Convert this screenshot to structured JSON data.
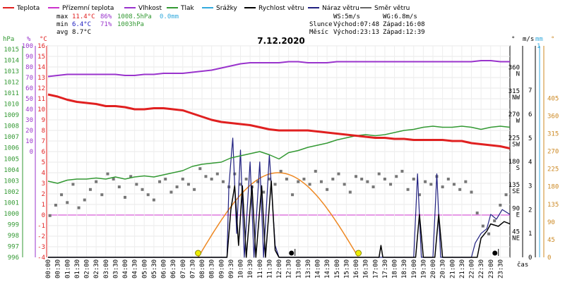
{
  "chart_data": {
    "type": "line",
    "title": "7.12.2020",
    "legend": [
      {
        "label": "Teplota",
        "color": "#e02020"
      },
      {
        "label": "Přízemní teplota",
        "color": "#cc33cc"
      },
      {
        "label": "Vlhkost",
        "color": "#9933cc"
      },
      {
        "label": "Tlak",
        "color": "#339933"
      },
      {
        "label": "Srážky",
        "color": "#33aadd"
      },
      {
        "label": "Rychlost větru",
        "color": "#000000"
      },
      {
        "label": "Náraz větru",
        "color": "#202080"
      },
      {
        "label": "Směr větru",
        "color": "#666666"
      }
    ],
    "stats": {
      "max_label": "max",
      "min_label": "min",
      "avg_label": "avg",
      "max_temp": "11.4°C",
      "max_hum": "86%",
      "max_press": "1008.5hPa",
      "max_rain": "0.0mm",
      "min_temp": "6.4°C",
      "min_hum": "71%",
      "min_press": "1003hPa",
      "avg_temp": "8.7°C",
      "ws": "WS:5m/s",
      "wg": "WG:6.8m/s",
      "slunce": "Slunce",
      "mesic": "Měsíc",
      "sun_rise": "Východ:07:48",
      "sun_set": "Západ:16:08",
      "moon_rise": "Východ:23:13",
      "moon_set": "Západ:12:39"
    },
    "axes": {
      "hpa_label": "hPa",
      "pct_label": "%",
      "degc_label": "°C",
      "deg_label": "°",
      "ms_label": "m/s",
      "mm_label": "mm",
      "deg2_label": "°",
      "time_label": "čas",
      "hpa_ticks": [
        "1015",
        "1014",
        "1013",
        "1012",
        "1011",
        "1010",
        "1009",
        "1008",
        "1007",
        "1006",
        "1005",
        "1004",
        "1003",
        "1002",
        "1001",
        "1000",
        "999",
        "998",
        "997",
        "996"
      ],
      "pct_ticks": [
        "100",
        "90",
        "80",
        "70",
        "60",
        "50",
        "40",
        "30",
        "20",
        "10",
        "0",
        "",
        "",
        "",
        "",
        "",
        "",
        "",
        "",
        ""
      ],
      "c_ticks": [
        "16",
        "15",
        "14",
        "13",
        "12",
        "11",
        "10",
        "9",
        "8",
        "7",
        "6",
        "5",
        "4",
        "3",
        "2",
        "1",
        "0",
        "-1",
        "-2",
        "-3",
        "-4"
      ],
      "dir_ticks": [
        {
          "v": 360,
          "t1": "360",
          "t2": "N"
        },
        {
          "v": 315,
          "t1": "315",
          "t2": "NW"
        },
        {
          "v": 270,
          "t1": "270",
          "t2": "W"
        },
        {
          "v": 225,
          "t1": "225",
          "t2": "SW"
        },
        {
          "v": 180,
          "t1": "180",
          "t2": "S"
        },
        {
          "v": 135,
          "t1": "135",
          "t2": "SE"
        },
        {
          "v": 90,
          "t1": "90",
          "t2": "E"
        },
        {
          "v": 45,
          "t1": "45",
          "t2": "NE"
        }
      ],
      "ms_ticks": [
        "7",
        "6",
        "5",
        "4",
        "3",
        "2",
        "1",
        "0"
      ],
      "mm_ticks": [
        "1"
      ],
      "deg2_ticks": [
        "405",
        "360",
        "315",
        "270",
        "225",
        "180",
        "135",
        "90",
        "45",
        "0"
      ],
      "time_ticks": [
        "00:00",
        "00:30",
        "01:00",
        "01:30",
        "02:00",
        "02:30",
        "03:00",
        "03:30",
        "04:00",
        "04:30",
        "05:00",
        "05:30",
        "06:00",
        "06:30",
        "07:00",
        "07:30",
        "08:00",
        "08:30",
        "09:00",
        "09:30",
        "10:00",
        "10:30",
        "11:00",
        "11:30",
        "12:00",
        "12:30",
        "13:00",
        "13:30",
        "14:00",
        "14:30",
        "15:00",
        "15:30",
        "16:00",
        "16:30",
        "17:00",
        "17:30",
        "18:00",
        "18:30",
        "19:00",
        "19:30",
        "20:00",
        "20:30",
        "21:00",
        "21:30",
        "22:00",
        "22:30",
        "23:00",
        "23:30"
      ]
    },
    "x_unit": "hours",
    "temperature": [
      [
        0,
        11.4
      ],
      [
        0.5,
        11.2
      ],
      [
        1,
        10.9
      ],
      [
        1.5,
        10.7
      ],
      [
        2,
        10.6
      ],
      [
        2.5,
        10.5
      ],
      [
        3,
        10.3
      ],
      [
        3.5,
        10.3
      ],
      [
        4,
        10.2
      ],
      [
        4.5,
        10.0
      ],
      [
        5,
        10.0
      ],
      [
        5.5,
        10.1
      ],
      [
        6,
        10.1
      ],
      [
        6.5,
        10.0
      ],
      [
        7,
        9.9
      ],
      [
        7.5,
        9.6
      ],
      [
        8,
        9.3
      ],
      [
        8.5,
        9.0
      ],
      [
        9,
        8.8
      ],
      [
        9.5,
        8.7
      ],
      [
        10,
        8.6
      ],
      [
        10.5,
        8.5
      ],
      [
        11,
        8.3
      ],
      [
        11.5,
        8.1
      ],
      [
        12,
        8.0
      ],
      [
        12.5,
        8.0
      ],
      [
        13,
        8.0
      ],
      [
        13.5,
        8.0
      ],
      [
        14,
        7.9
      ],
      [
        14.5,
        7.8
      ],
      [
        15,
        7.7
      ],
      [
        15.5,
        7.6
      ],
      [
        16,
        7.5
      ],
      [
        16.5,
        7.4
      ],
      [
        17,
        7.3
      ],
      [
        17.5,
        7.3
      ],
      [
        18,
        7.2
      ],
      [
        18.5,
        7.2
      ],
      [
        19,
        7.1
      ],
      [
        19.5,
        7.1
      ],
      [
        20,
        7.1
      ],
      [
        20.5,
        7.1
      ],
      [
        21,
        7.0
      ],
      [
        21.5,
        7.0
      ],
      [
        22,
        6.8
      ],
      [
        22.5,
        6.7
      ],
      [
        23,
        6.6
      ],
      [
        23.5,
        6.5
      ],
      [
        24,
        6.3
      ]
    ],
    "humidity": [
      [
        0,
        71
      ],
      [
        0.5,
        72
      ],
      [
        1,
        73
      ],
      [
        1.5,
        73
      ],
      [
        2,
        73
      ],
      [
        2.5,
        73
      ],
      [
        3,
        73
      ],
      [
        3.5,
        73
      ],
      [
        4,
        72
      ],
      [
        4.5,
        72
      ],
      [
        5,
        73
      ],
      [
        5.5,
        73
      ],
      [
        6,
        74
      ],
      [
        6.5,
        74
      ],
      [
        7,
        74
      ],
      [
        7.5,
        75
      ],
      [
        8,
        76
      ],
      [
        8.5,
        77
      ],
      [
        9,
        79
      ],
      [
        9.5,
        81
      ],
      [
        10,
        83
      ],
      [
        10.5,
        84
      ],
      [
        11,
        84
      ],
      [
        11.5,
        84
      ],
      [
        12,
        84
      ],
      [
        12.5,
        85
      ],
      [
        13,
        85
      ],
      [
        13.5,
        84
      ],
      [
        14,
        84
      ],
      [
        14.5,
        84
      ],
      [
        15,
        85
      ],
      [
        15.5,
        85
      ],
      [
        16,
        85
      ],
      [
        16.5,
        85
      ],
      [
        17,
        85
      ],
      [
        17.5,
        85
      ],
      [
        18,
        85
      ],
      [
        18.5,
        85
      ],
      [
        19,
        85
      ],
      [
        19.5,
        85
      ],
      [
        20,
        85
      ],
      [
        20.5,
        85
      ],
      [
        21,
        85
      ],
      [
        21.5,
        85
      ],
      [
        22,
        85
      ],
      [
        22.5,
        86
      ],
      [
        23,
        86
      ],
      [
        23.5,
        85
      ],
      [
        24,
        85
      ]
    ],
    "pressure": [
      [
        0,
        1003.2
      ],
      [
        0.5,
        1003.0
      ],
      [
        1,
        1003.3
      ],
      [
        1.5,
        1003.4
      ],
      [
        2,
        1003.4
      ],
      [
        2.5,
        1003.5
      ],
      [
        3,
        1003.4
      ],
      [
        3.5,
        1003.6
      ],
      [
        4,
        1003.4
      ],
      [
        4.5,
        1003.6
      ],
      [
        5,
        1003.7
      ],
      [
        5.5,
        1003.6
      ],
      [
        6,
        1003.8
      ],
      [
        6.5,
        1004.0
      ],
      [
        7,
        1004.2
      ],
      [
        7.5,
        1004.6
      ],
      [
        8,
        1004.8
      ],
      [
        8.5,
        1004.9
      ],
      [
        9,
        1005.0
      ],
      [
        9.5,
        1005.4
      ],
      [
        10,
        1005.6
      ],
      [
        10.5,
        1005.8
      ],
      [
        11,
        1006.0
      ],
      [
        11.5,
        1005.7
      ],
      [
        12,
        1005.3
      ],
      [
        12.5,
        1005.9
      ],
      [
        13,
        1006.1
      ],
      [
        13.5,
        1006.4
      ],
      [
        14,
        1006.6
      ],
      [
        14.5,
        1006.8
      ],
      [
        15,
        1007.1
      ],
      [
        15.5,
        1007.3
      ],
      [
        16,
        1007.5
      ],
      [
        16.5,
        1007.6
      ],
      [
        17,
        1007.5
      ],
      [
        17.5,
        1007.6
      ],
      [
        18,
        1007.8
      ],
      [
        18.5,
        1008.0
      ],
      [
        19,
        1008.1
      ],
      [
        19.5,
        1008.3
      ],
      [
        20,
        1008.4
      ],
      [
        20.5,
        1008.3
      ],
      [
        21,
        1008.3
      ],
      [
        21.5,
        1008.4
      ],
      [
        22,
        1008.3
      ],
      [
        22.5,
        1008.1
      ],
      [
        23,
        1008.3
      ],
      [
        23.5,
        1008.4
      ],
      [
        24,
        1008.3
      ]
    ],
    "wind_dir": [
      [
        0.1,
        80
      ],
      [
        0.4,
        100
      ],
      [
        0.7,
        120
      ],
      [
        1,
        105
      ],
      [
        1.3,
        140
      ],
      [
        1.6,
        95
      ],
      [
        1.9,
        110
      ],
      [
        2.2,
        130
      ],
      [
        2.5,
        145
      ],
      [
        2.8,
        120
      ],
      [
        3.1,
        160
      ],
      [
        3.4,
        150
      ],
      [
        3.7,
        135
      ],
      [
        4,
        115
      ],
      [
        4.3,
        155
      ],
      [
        4.6,
        140
      ],
      [
        4.9,
        130
      ],
      [
        5.2,
        120
      ],
      [
        5.5,
        110
      ],
      [
        5.8,
        145
      ],
      [
        6.1,
        150
      ],
      [
        6.4,
        125
      ],
      [
        6.7,
        135
      ],
      [
        7,
        150
      ],
      [
        7.3,
        140
      ],
      [
        7.6,
        130
      ],
      [
        7.9,
        170
      ],
      [
        8.2,
        155
      ],
      [
        8.5,
        150
      ],
      [
        8.8,
        160
      ],
      [
        9.1,
        145
      ],
      [
        9.4,
        135
      ],
      [
        9.7,
        160
      ],
      [
        10,
        140
      ],
      [
        10.3,
        150
      ],
      [
        10.6,
        135
      ],
      [
        10.9,
        145
      ],
      [
        11.2,
        125
      ],
      [
        11.5,
        150
      ],
      [
        11.8,
        140
      ],
      [
        12.1,
        165
      ],
      [
        12.4,
        150
      ],
      [
        12.7,
        120
      ],
      [
        13,
        145
      ],
      [
        13.3,
        150
      ],
      [
        13.6,
        140
      ],
      [
        13.9,
        165
      ],
      [
        14.2,
        145
      ],
      [
        14.5,
        130
      ],
      [
        14.8,
        150
      ],
      [
        15.1,
        160
      ],
      [
        15.4,
        140
      ],
      [
        15.7,
        125
      ],
      [
        16,
        155
      ],
      [
        16.3,
        150
      ],
      [
        16.6,
        145
      ],
      [
        16.9,
        135
      ],
      [
        17.2,
        160
      ],
      [
        17.5,
        150
      ],
      [
        17.8,
        140
      ],
      [
        18.1,
        155
      ],
      [
        18.4,
        165
      ],
      [
        18.7,
        130
      ],
      [
        19,
        150
      ],
      [
        19.3,
        120
      ],
      [
        19.6,
        145
      ],
      [
        19.9,
        140
      ],
      [
        20.2,
        155
      ],
      [
        20.5,
        135
      ],
      [
        20.8,
        150
      ],
      [
        21.1,
        140
      ],
      [
        21.4,
        130
      ],
      [
        21.7,
        145
      ],
      [
        22,
        125
      ],
      [
        22.3,
        85
      ],
      [
        22.6,
        60
      ],
      [
        22.9,
        45
      ],
      [
        23.2,
        70
      ],
      [
        23.5,
        100
      ],
      [
        23.8,
        120
      ]
    ],
    "wind_gust": [
      [
        0,
        0
      ],
      [
        9.3,
        0
      ],
      [
        9.4,
        3
      ],
      [
        9.6,
        5
      ],
      [
        9.8,
        1
      ],
      [
        10,
        4.5
      ],
      [
        10.2,
        0
      ],
      [
        10.5,
        4
      ],
      [
        10.7,
        0
      ],
      [
        11,
        4
      ],
      [
        11.2,
        0
      ],
      [
        11.5,
        4.3
      ],
      [
        11.8,
        0.5
      ],
      [
        12,
        0
      ],
      [
        19,
        0
      ],
      [
        19.2,
        3.5
      ],
      [
        19.4,
        0
      ],
      [
        20,
        0
      ],
      [
        20.2,
        3.5
      ],
      [
        20.4,
        0
      ],
      [
        22,
        0
      ],
      [
        22.2,
        0.6
      ],
      [
        22.5,
        1
      ],
      [
        22.8,
        1.2
      ],
      [
        23,
        1.8
      ],
      [
        23.3,
        1.6
      ],
      [
        23.6,
        2
      ],
      [
        24,
        1.8
      ]
    ],
    "wind_speed": [
      [
        0,
        0
      ],
      [
        9.3,
        0
      ],
      [
        9.5,
        2
      ],
      [
        9.7,
        3
      ],
      [
        9.9,
        0.5
      ],
      [
        10.1,
        3
      ],
      [
        10.3,
        0
      ],
      [
        10.6,
        3
      ],
      [
        10.8,
        0
      ],
      [
        11.1,
        3
      ],
      [
        11.3,
        0
      ],
      [
        11.6,
        3.2
      ],
      [
        11.8,
        0.3
      ],
      [
        12,
        0
      ],
      [
        17.2,
        0
      ],
      [
        17.3,
        0.5
      ],
      [
        17.4,
        0
      ],
      [
        19.1,
        0
      ],
      [
        19.3,
        1.8
      ],
      [
        19.5,
        0
      ],
      [
        20.1,
        0
      ],
      [
        20.3,
        1.8
      ],
      [
        20.5,
        0
      ],
      [
        22.3,
        0
      ],
      [
        22.5,
        0.8
      ],
      [
        22.8,
        1.1
      ],
      [
        23,
        1.4
      ],
      [
        23.4,
        1.3
      ],
      [
        23.7,
        1.5
      ],
      [
        24,
        1.4
      ]
    ],
    "sun_elevation": {
      "rise_hour": 7.8,
      "set_hour": 16.13,
      "max_deg": 18
    },
    "sun_markers": [
      7.8,
      16.13
    ],
    "moon_markers": [
      12.65,
      23.22
    ],
    "ylim_temp": [
      -4,
      16
    ],
    "ylim_hum": [
      0,
      100
    ],
    "ylim_press": [
      996,
      1015
    ],
    "ylim_dir": [
      0,
      360
    ],
    "ylim_ms": [
      0,
      7
    ],
    "xlim": [
      0,
      24
    ]
  }
}
